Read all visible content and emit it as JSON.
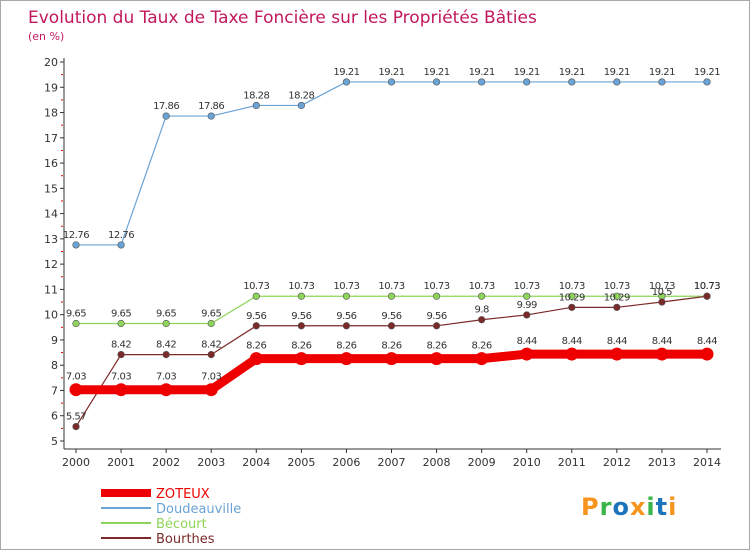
{
  "chart_data": {
    "type": "line",
    "title": "Evolution du Taux de Taxe Foncière sur les Propriétés Bâties",
    "subtitle": "(en %)",
    "xlabel": "",
    "ylabel": "",
    "ylim": [
      5,
      20
    ],
    "yticks": [
      "5",
      "6",
      "7",
      "8",
      "9",
      "10",
      "11",
      "12",
      "13",
      "14",
      "15",
      "16",
      "17",
      "18",
      "19",
      "20"
    ],
    "categories": [
      "2000",
      "2001",
      "2002",
      "2003",
      "2004",
      "2005",
      "2006",
      "2007",
      "2008",
      "2009",
      "2010",
      "2011",
      "2012",
      "2013",
      "2014"
    ],
    "legend_position": "bottom-left",
    "series": [
      {
        "name": "ZOTEUX",
        "color": "#ee0000",
        "values": [
          7.03,
          7.03,
          7.03,
          7.03,
          8.26,
          8.26,
          8.26,
          8.26,
          8.26,
          8.26,
          8.44,
          8.44,
          8.44,
          8.44,
          8.44
        ],
        "labels": [
          "7.03",
          "7.03",
          "7.03",
          "7.03",
          "8.26",
          "8.26",
          "8.26",
          "8.26",
          "8.26",
          "8.26",
          "8.44",
          "8.44",
          "8.44",
          "8.44",
          "8.44"
        ]
      },
      {
        "name": "Doudeauville",
        "color": "#6aa3d5",
        "values": [
          12.76,
          12.76,
          17.86,
          17.86,
          18.28,
          18.28,
          19.21,
          19.21,
          19.21,
          19.21,
          19.21,
          19.21,
          19.21,
          19.21,
          19.21
        ],
        "labels": [
          "12.76",
          "12.76",
          "17.86",
          "17.86",
          "18.28",
          "18.28",
          "19.21",
          "19.21",
          "19.21",
          "19.21",
          "19.21",
          "19.21",
          "19.21",
          "19.21",
          "19.21"
        ]
      },
      {
        "name": "Bécourt",
        "color": "#8fd45a",
        "values": [
          9.65,
          9.65,
          9.65,
          9.65,
          10.73,
          10.73,
          10.73,
          10.73,
          10.73,
          10.73,
          10.73,
          10.73,
          10.73,
          10.73,
          10.73
        ],
        "labels": [
          "9.65",
          "9.65",
          "9.65",
          "9.65",
          "10.73",
          "10.73",
          "10.73",
          "10.73",
          "10.73",
          "10.73",
          "10.73",
          "10.73",
          "10.73",
          "10.73",
          "10.73"
        ]
      },
      {
        "name": "Bourthes",
        "color": "#7b2a2a",
        "values": [
          5.57,
          8.42,
          8.42,
          8.42,
          9.56,
          9.56,
          9.56,
          9.56,
          9.56,
          9.8,
          9.99,
          10.29,
          10.29,
          10.5,
          10.73
        ],
        "labels": [
          "5.57",
          "8.42",
          "8.42",
          "8.42",
          "9.56",
          "9.56",
          "9.56",
          "9.56",
          "9.56",
          "9.8",
          "9.99",
          "10.29",
          "10.29",
          "10.5",
          "10.73"
        ]
      }
    ]
  },
  "colors": {
    "title": "#c2185b",
    "axis": "#333333",
    "grid_minor_tick": "#ee0000"
  },
  "logo": {
    "letters": [
      "P",
      "r",
      "o",
      "x",
      "i",
      "t",
      "i"
    ],
    "letter_colors": [
      "#f7941d",
      "#39b54a",
      "#1c75bc",
      "#f7941d",
      "#39b54a",
      "#1c75bc",
      "#f7941d"
    ]
  }
}
